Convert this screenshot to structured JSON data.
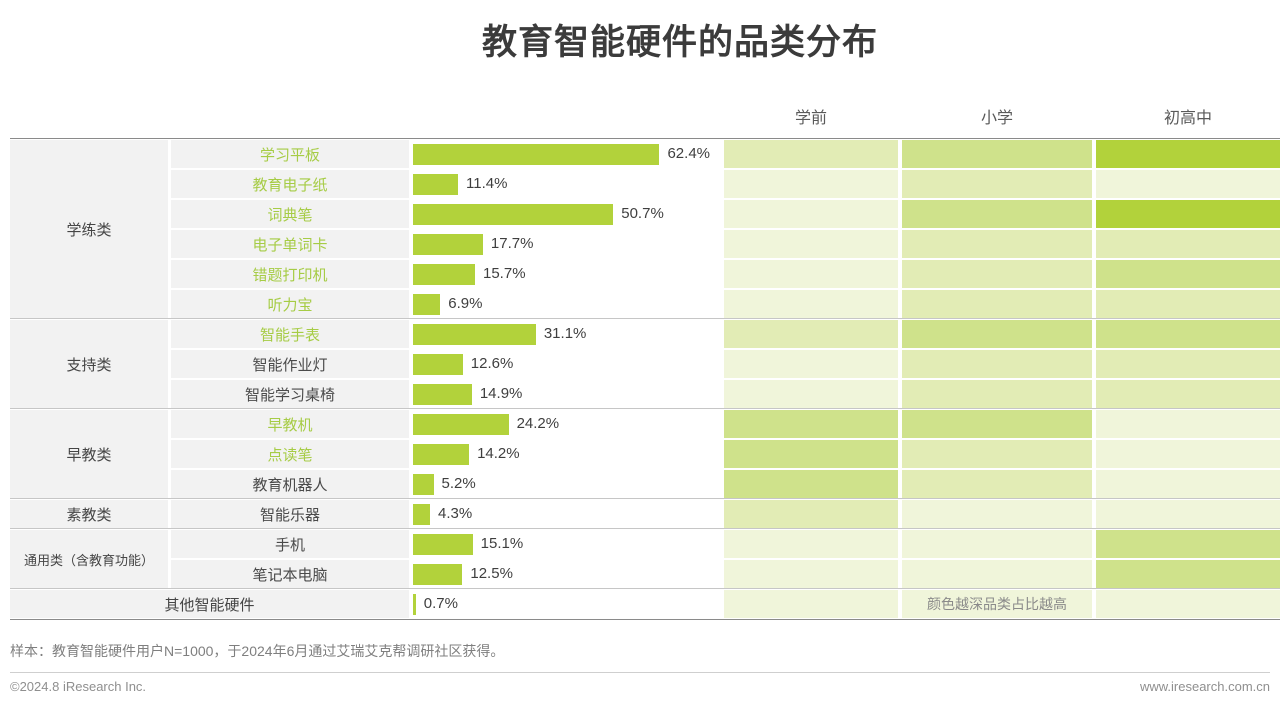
{
  "title": "教育智能硬件的品类分布",
  "header": {
    "columns": [
      "学前",
      "小学",
      "初高中"
    ]
  },
  "legend_note": "颜色越深品类占比越高",
  "footnote": "样本：教育智能硬件用户N=1000，于2024年6月通过艾瑞艾克帮调研社区获得。",
  "footer": {
    "copyright": "©2024.8 iResearch Inc.",
    "website": "www.iresearch.com.cn"
  },
  "colors": {
    "bar": "#b2d23b",
    "green_item_text": "#a6cc45",
    "cell_background": "#f2f2f2",
    "heat_levels": [
      "#f0f5da",
      "#e2ecb5",
      "#cfe28b",
      "#b2d23b"
    ]
  },
  "groups": [
    {
      "label": "学练类",
      "start": 0,
      "count": 6,
      "span_full": false
    },
    {
      "label": "支持类",
      "start": 6,
      "count": 3,
      "span_full": false
    },
    {
      "label": "早教类",
      "start": 9,
      "count": 3,
      "span_full": false
    },
    {
      "label": "素教类",
      "start": 12,
      "count": 1,
      "span_full": false
    },
    {
      "label": "通用类（含教育功能）",
      "start": 13,
      "count": 2,
      "span_full": false
    },
    {
      "label": "其他智能硬件",
      "start": 15,
      "count": 1,
      "span_full": true
    }
  ],
  "rows": [
    {
      "item": "学习平板",
      "green": true,
      "value": 62.4,
      "label": "62.4%",
      "heat": [
        2,
        3,
        4
      ]
    },
    {
      "item": "教育电子纸",
      "green": true,
      "value": 11.4,
      "label": "11.4%",
      "heat": [
        1,
        2,
        1
      ]
    },
    {
      "item": "词典笔",
      "green": true,
      "value": 50.7,
      "label": "50.7%",
      "heat": [
        1,
        3,
        4
      ]
    },
    {
      "item": "电子单词卡",
      "green": true,
      "value": 17.7,
      "label": "17.7%",
      "heat": [
        1,
        2,
        2
      ]
    },
    {
      "item": "错题打印机",
      "green": true,
      "value": 15.7,
      "label": "15.7%",
      "heat": [
        1,
        2,
        3
      ]
    },
    {
      "item": "听力宝",
      "green": true,
      "value": 6.9,
      "label": "6.9%",
      "heat": [
        1,
        2,
        2
      ]
    },
    {
      "item": "智能手表",
      "green": true,
      "value": 31.1,
      "label": "31.1%",
      "heat": [
        2,
        3,
        3
      ]
    },
    {
      "item": "智能作业灯",
      "green": false,
      "value": 12.6,
      "label": "12.6%",
      "heat": [
        1,
        2,
        2
      ]
    },
    {
      "item": "智能学习桌椅",
      "green": false,
      "value": 14.9,
      "label": "14.9%",
      "heat": [
        1,
        2,
        2
      ]
    },
    {
      "item": "早教机",
      "green": true,
      "value": 24.2,
      "label": "24.2%",
      "heat": [
        3,
        3,
        1
      ]
    },
    {
      "item": "点读笔",
      "green": true,
      "value": 14.2,
      "label": "14.2%",
      "heat": [
        3,
        2,
        1
      ]
    },
    {
      "item": "教育机器人",
      "green": false,
      "value": 5.2,
      "label": "5.2%",
      "heat": [
        3,
        2,
        1
      ]
    },
    {
      "item": "智能乐器",
      "green": false,
      "value": 4.3,
      "label": "4.3%",
      "heat": [
        2,
        1,
        1
      ]
    },
    {
      "item": "手机",
      "green": false,
      "value": 15.1,
      "label": "15.1%",
      "heat": [
        1,
        1,
        3
      ]
    },
    {
      "item": "笔记本电脑",
      "green": false,
      "value": 12.5,
      "label": "12.5%",
      "heat": [
        1,
        1,
        3
      ]
    },
    {
      "item": "其他智能硬件",
      "green": false,
      "value": 0.7,
      "label": "0.7%",
      "heat": [
        1,
        1,
        1
      ],
      "no_item_cell": true
    }
  ],
  "chart_data": {
    "type": "bar",
    "orientation": "horizontal",
    "title": "教育智能硬件的品类分布",
    "unit": "%",
    "xlim": [
      0,
      70
    ],
    "categories": [
      "学习平板",
      "教育电子纸",
      "词典笔",
      "电子单词卡",
      "错题打印机",
      "听力宝",
      "智能手表",
      "智能作业灯",
      "智能学习桌椅",
      "早教机",
      "点读笔",
      "教育机器人",
      "智能乐器",
      "手机",
      "笔记本电脑",
      "其他智能硬件"
    ],
    "values": [
      62.4,
      11.4,
      50.7,
      17.7,
      15.7,
      6.9,
      31.1,
      12.6,
      14.9,
      24.2,
      14.2,
      5.2,
      4.3,
      15.1,
      12.5,
      0.7
    ],
    "category_group_of_each_row": [
      "学练类",
      "学练类",
      "学练类",
      "学练类",
      "学练类",
      "学练类",
      "支持类",
      "支持类",
      "支持类",
      "早教类",
      "早教类",
      "早教类",
      "素教类",
      "通用类（含教育功能）",
      "通用类（含教育功能）",
      "其他智能硬件"
    ],
    "heatmap": {
      "columns": [
        "学前",
        "小学",
        "初高中"
      ],
      "legend": "颜色越深品类占比越高",
      "intensity_scale": "1=lightest, 4=darkest",
      "intensities": [
        [
          2,
          3,
          4
        ],
        [
          1,
          2,
          1
        ],
        [
          1,
          3,
          4
        ],
        [
          1,
          2,
          2
        ],
        [
          1,
          2,
          3
        ],
        [
          1,
          2,
          2
        ],
        [
          2,
          3,
          3
        ],
        [
          1,
          2,
          2
        ],
        [
          1,
          2,
          2
        ],
        [
          3,
          3,
          1
        ],
        [
          3,
          2,
          1
        ],
        [
          3,
          2,
          1
        ],
        [
          2,
          1,
          1
        ],
        [
          1,
          1,
          3
        ],
        [
          1,
          1,
          3
        ],
        [
          1,
          1,
          1
        ]
      ]
    }
  }
}
